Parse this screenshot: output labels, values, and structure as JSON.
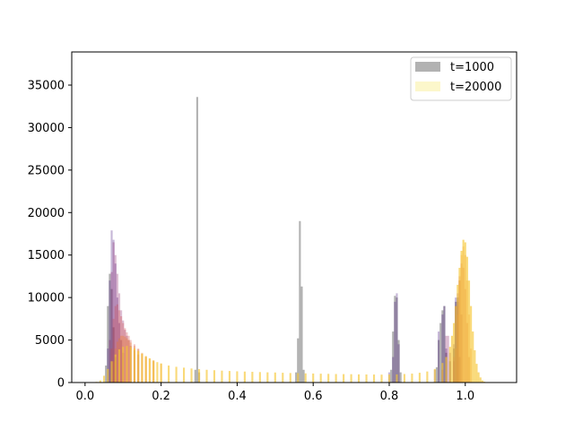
{
  "chart_data": {
    "type": "bar",
    "title": "",
    "xlabel": "",
    "ylabel": "",
    "xlim": [
      -0.035,
      1.135
    ],
    "ylim": [
      0,
      38900
    ],
    "grid": false,
    "legend_position": "top-right",
    "x_ticks": [
      {
        "value": 0.0,
        "label": "0.0"
      },
      {
        "value": 0.2,
        "label": "0.2"
      },
      {
        "value": 0.4,
        "label": "0.4"
      },
      {
        "value": 0.6,
        "label": "0.6"
      },
      {
        "value": 0.8,
        "label": "0.8"
      },
      {
        "value": 1.0,
        "label": "1.0"
      }
    ],
    "y_ticks": [
      {
        "value": 0,
        "label": "0"
      },
      {
        "value": 5000,
        "label": "5000"
      },
      {
        "value": 10000,
        "label": "10000"
      },
      {
        "value": 15000,
        "label": "15000"
      },
      {
        "value": 20000,
        "label": "20000"
      },
      {
        "value": 25000,
        "label": "25000"
      },
      {
        "value": 30000,
        "label": "30000"
      },
      {
        "value": 35000,
        "label": "35000"
      }
    ],
    "legend": [
      {
        "label": "t=1000",
        "color": "#000000",
        "alpha": 0.3
      },
      {
        "label": "t=20000",
        "color": "#f6e652",
        "alpha": 0.3
      }
    ],
    "series": [
      {
        "name": "t=1000",
        "color": "#000000",
        "alpha": 0.3,
        "bins": [
          [
            0.055,
            2000
          ],
          [
            0.06,
            9000
          ],
          [
            0.065,
            12800
          ],
          [
            0.07,
            11000
          ],
          [
            0.075,
            6500
          ],
          [
            0.08,
            3000
          ],
          [
            0.29,
            1500
          ],
          [
            0.295,
            33600
          ],
          [
            0.3,
            1200
          ],
          [
            0.555,
            1200
          ],
          [
            0.56,
            5200
          ],
          [
            0.565,
            19000
          ],
          [
            0.57,
            11300
          ],
          [
            0.575,
            1500
          ],
          [
            0.805,
            1500
          ],
          [
            0.81,
            6000
          ],
          [
            0.815,
            10200
          ],
          [
            0.82,
            10000
          ],
          [
            0.825,
            5000
          ],
          [
            0.83,
            1200
          ],
          [
            0.925,
            1800
          ],
          [
            0.93,
            5000
          ],
          [
            0.935,
            7000
          ],
          [
            0.94,
            8500
          ],
          [
            0.945,
            9000
          ],
          [
            0.95,
            3500
          ],
          [
            0.96,
            2500
          ],
          [
            0.97,
            4000
          ],
          [
            0.975,
            9500
          ],
          [
            0.98,
            10000
          ]
        ]
      },
      {
        "name": "",
        "color": "#42107a",
        "alpha": 0.3,
        "bins": [
          [
            0.06,
            4000
          ],
          [
            0.065,
            12000
          ],
          [
            0.07,
            17900
          ],
          [
            0.075,
            16800
          ],
          [
            0.08,
            14000
          ],
          [
            0.085,
            10000
          ],
          [
            0.09,
            7000
          ],
          [
            0.095,
            5000
          ],
          [
            0.1,
            3500
          ],
          [
            0.8,
            1200
          ],
          [
            0.81,
            3000
          ],
          [
            0.815,
            9500
          ],
          [
            0.82,
            10500
          ],
          [
            0.825,
            4500
          ],
          [
            0.92,
            1500
          ],
          [
            0.93,
            6000
          ],
          [
            0.94,
            8000
          ],
          [
            0.945,
            9000
          ],
          [
            0.95,
            4000
          ],
          [
            0.97,
            4500
          ],
          [
            0.975,
            10000
          ],
          [
            0.98,
            9500
          ],
          [
            0.985,
            3000
          ]
        ]
      },
      {
        "name": "",
        "color": "#8a226a",
        "alpha": 0.3,
        "bins": [
          [
            0.065,
            5000
          ],
          [
            0.07,
            13000
          ],
          [
            0.075,
            16500
          ],
          [
            0.08,
            15000
          ],
          [
            0.085,
            12800
          ],
          [
            0.09,
            10500
          ],
          [
            0.095,
            8500
          ],
          [
            0.1,
            7300
          ],
          [
            0.105,
            6200
          ],
          [
            0.11,
            5500
          ],
          [
            0.115,
            5000
          ],
          [
            0.12,
            4300
          ],
          [
            0.13,
            3800
          ],
          [
            0.14,
            3300
          ],
          [
            0.94,
            1500
          ],
          [
            0.95,
            5500
          ],
          [
            0.955,
            5500
          ],
          [
            0.96,
            3500
          ],
          [
            0.97,
            2500
          ],
          [
            0.975,
            9000
          ],
          [
            0.98,
            10500
          ],
          [
            0.985,
            12000
          ],
          [
            0.99,
            8000
          ]
        ]
      },
      {
        "name": "",
        "color": "#cf4446",
        "alpha": 0.3,
        "bins": [
          [
            0.07,
            4000
          ],
          [
            0.075,
            7500
          ],
          [
            0.08,
            9000
          ],
          [
            0.085,
            9200
          ],
          [
            0.09,
            8500
          ],
          [
            0.095,
            7800
          ],
          [
            0.1,
            7000
          ],
          [
            0.105,
            6400
          ],
          [
            0.11,
            5900
          ],
          [
            0.115,
            5500
          ],
          [
            0.12,
            5000
          ],
          [
            0.13,
            4500
          ],
          [
            0.14,
            4000
          ],
          [
            0.15,
            3400
          ],
          [
            0.16,
            3000
          ],
          [
            0.18,
            2600
          ],
          [
            0.97,
            3000
          ],
          [
            0.98,
            9000
          ],
          [
            0.985,
            12500
          ],
          [
            0.99,
            14000
          ],
          [
            0.995,
            13500
          ],
          [
            1.0,
            11000
          ],
          [
            1.005,
            7000
          ],
          [
            1.01,
            3000
          ]
        ]
      },
      {
        "name": "",
        "color": "#f37819",
        "alpha": 0.3,
        "bins": [
          [
            0.075,
            2500
          ],
          [
            0.08,
            4000
          ],
          [
            0.085,
            4800
          ],
          [
            0.09,
            5200
          ],
          [
            0.095,
            5500
          ],
          [
            0.1,
            5500
          ],
          [
            0.105,
            5400
          ],
          [
            0.11,
            5200
          ],
          [
            0.115,
            5000
          ],
          [
            0.12,
            4700
          ],
          [
            0.13,
            4300
          ],
          [
            0.14,
            3900
          ],
          [
            0.15,
            3500
          ],
          [
            0.16,
            3100
          ],
          [
            0.17,
            2800
          ],
          [
            0.18,
            2500
          ],
          [
            0.2,
            2200
          ],
          [
            0.975,
            4000
          ],
          [
            0.98,
            8000
          ],
          [
            0.985,
            12000
          ],
          [
            0.99,
            15000
          ],
          [
            0.995,
            16000
          ],
          [
            1.0,
            15000
          ],
          [
            1.005,
            12000
          ],
          [
            1.01,
            8000
          ],
          [
            1.015,
            4000
          ]
        ]
      },
      {
        "name": "t=20000",
        "color": "#f6c632",
        "alpha": 0.65,
        "bins": [
          [
            0.03,
            80
          ],
          [
            0.04,
            250
          ],
          [
            0.05,
            800
          ],
          [
            0.06,
            1600
          ],
          [
            0.07,
            2500
          ],
          [
            0.08,
            3300
          ],
          [
            0.09,
            3900
          ],
          [
            0.1,
            4200
          ],
          [
            0.11,
            4300
          ],
          [
            0.12,
            4200
          ],
          [
            0.13,
            4000
          ],
          [
            0.14,
            3700
          ],
          [
            0.15,
            3400
          ],
          [
            0.16,
            3100
          ],
          [
            0.17,
            2850
          ],
          [
            0.18,
            2600
          ],
          [
            0.19,
            2400
          ],
          [
            0.2,
            2250
          ],
          [
            0.22,
            2000
          ],
          [
            0.24,
            1850
          ],
          [
            0.26,
            1750
          ],
          [
            0.28,
            1650
          ],
          [
            0.3,
            1580
          ],
          [
            0.32,
            1500
          ],
          [
            0.34,
            1450
          ],
          [
            0.36,
            1400
          ],
          [
            0.38,
            1360
          ],
          [
            0.4,
            1320
          ],
          [
            0.42,
            1290
          ],
          [
            0.44,
            1260
          ],
          [
            0.46,
            1230
          ],
          [
            0.48,
            1200
          ],
          [
            0.5,
            1180
          ],
          [
            0.52,
            1150
          ],
          [
            0.54,
            1120
          ],
          [
            0.56,
            1100
          ],
          [
            0.58,
            1080
          ],
          [
            0.6,
            1060
          ],
          [
            0.62,
            1040
          ],
          [
            0.64,
            1020
          ],
          [
            0.66,
            1000
          ],
          [
            0.68,
            990
          ],
          [
            0.7,
            980
          ],
          [
            0.72,
            960
          ],
          [
            0.74,
            950
          ],
          [
            0.76,
            940
          ],
          [
            0.78,
            930
          ],
          [
            0.8,
            940
          ],
          [
            0.82,
            960
          ],
          [
            0.84,
            1000
          ],
          [
            0.86,
            1050
          ],
          [
            0.88,
            1150
          ],
          [
            0.9,
            1300
          ],
          [
            0.92,
            1600
          ],
          [
            0.94,
            2300
          ],
          [
            0.95,
            3000
          ],
          [
            0.96,
            4200
          ],
          [
            0.965,
            5500
          ],
          [
            0.97,
            7000
          ],
          [
            0.975,
            9000
          ],
          [
            0.98,
            11500
          ],
          [
            0.985,
            13500
          ],
          [
            0.99,
            15500
          ],
          [
            0.995,
            16800
          ],
          [
            1.0,
            16500
          ],
          [
            1.005,
            14800
          ],
          [
            1.01,
            12000
          ],
          [
            1.015,
            9000
          ],
          [
            1.02,
            6000
          ],
          [
            1.025,
            3800
          ],
          [
            1.03,
            2200
          ],
          [
            1.035,
            1200
          ],
          [
            1.04,
            600
          ],
          [
            1.045,
            250
          ],
          [
            1.05,
            100
          ],
          [
            1.055,
            40
          ]
        ]
      }
    ]
  }
}
